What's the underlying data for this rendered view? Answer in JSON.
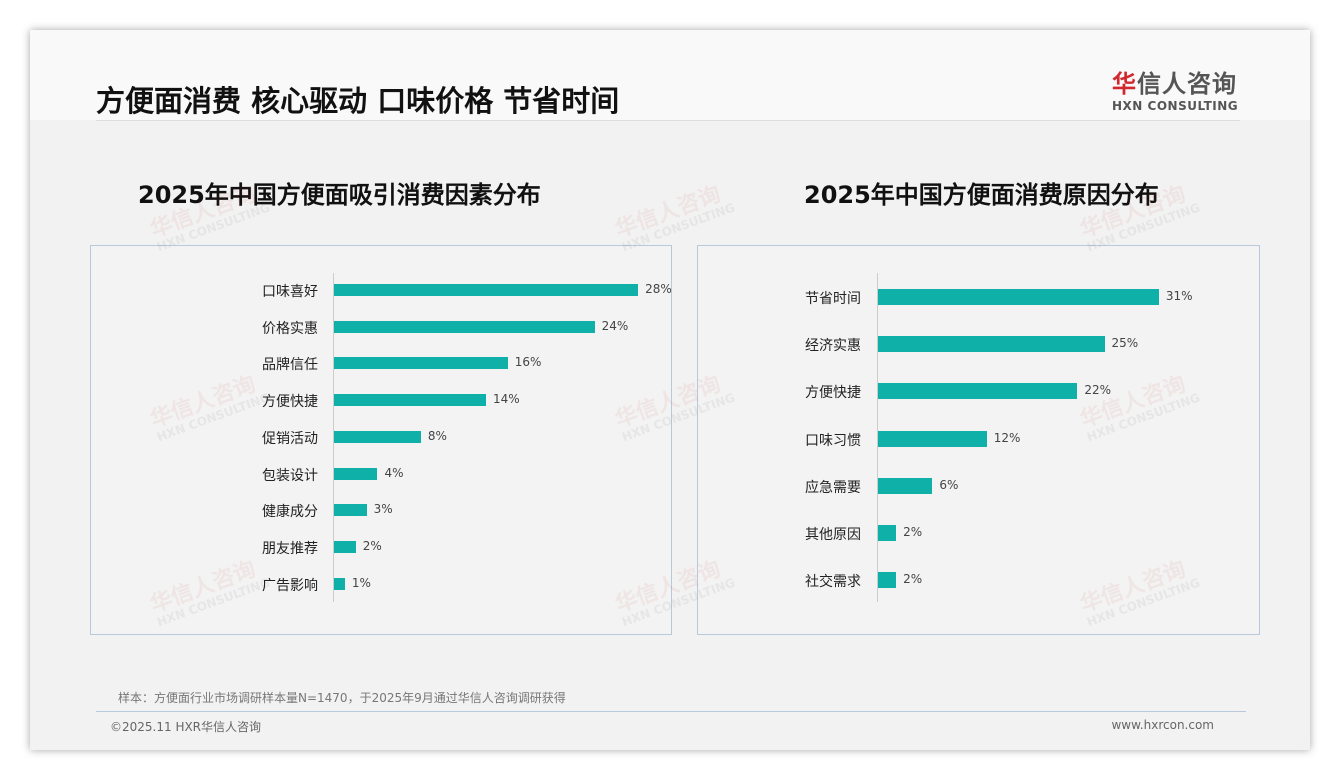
{
  "header": {
    "title": "方便面消费 核心驱动 口味价格 节省时间",
    "logo_cn_red": "华",
    "logo_cn": "信人咨询",
    "logo_en": "HXN CONSULTING"
  },
  "colors": {
    "bar": "#0fb0a8",
    "logo_red": "#d0282e"
  },
  "chart_data": [
    {
      "type": "bar",
      "orientation": "horizontal",
      "title": "2025年中国方便面吸引消费因素分布",
      "categories": [
        "口味喜好",
        "价格实惠",
        "品牌信任",
        "方便快捷",
        "促销活动",
        "包装设计",
        "健康成分",
        "朋友推荐",
        "广告影响"
      ],
      "values": [
        28,
        24,
        16,
        14,
        8,
        4,
        3,
        2,
        1
      ],
      "labels": [
        "28%",
        "24%",
        "16%",
        "14%",
        "8%",
        "4%",
        "3%",
        "2%",
        "1%"
      ],
      "unit": "%",
      "xlim": [
        0,
        30
      ]
    },
    {
      "type": "bar",
      "orientation": "horizontal",
      "title": "2025年中国方便面消费原因分布",
      "categories": [
        "节省时间",
        "经济实惠",
        "方便快捷",
        "口味习惯",
        "应急需要",
        "其他原因",
        "社交需求"
      ],
      "values": [
        31,
        25,
        22,
        12,
        6,
        2,
        2
      ],
      "labels": [
        "31%",
        "25%",
        "22%",
        "12%",
        "6%",
        "2%",
        "2%"
      ],
      "unit": "%",
      "xlim": [
        0,
        33
      ]
    }
  ],
  "footer": {
    "note": "样本：方便面行业市场调研样本量N=1470，于2025年9月通过华信人咨询调研获得",
    "copyright": "©2025.11 HXR华信人咨询",
    "website": "www.hxrcon.com"
  }
}
